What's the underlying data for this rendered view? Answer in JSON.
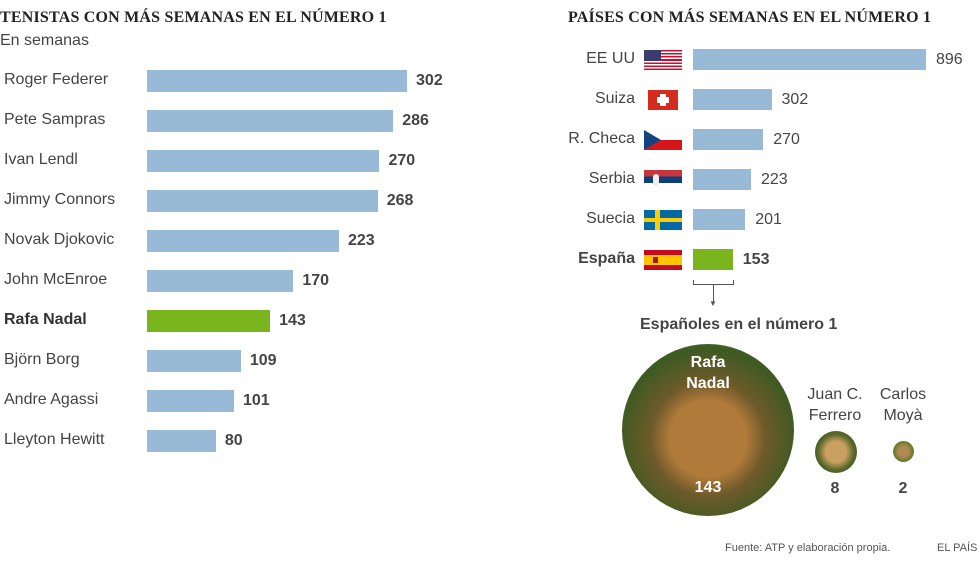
{
  "chart_data": [
    {
      "type": "bar",
      "title": "TENISTAS CON MÁS SEMANAS EN EL NÚMERO 1",
      "subtitle": "En semanas",
      "orientation": "horizontal",
      "categories": [
        "Roger Federer",
        "Pete Sampras",
        "Ivan Lendl",
        "Jimmy Connors",
        "Novak Djokovic",
        "John McEnroe",
        "Rafa Nadal",
        "Björn Borg",
        "Andre Agassi",
        "Lleyton Hewitt"
      ],
      "values": [
        302,
        286,
        270,
        268,
        223,
        170,
        143,
        109,
        101,
        80
      ],
      "highlight": "Rafa Nadal"
    },
    {
      "type": "bar",
      "title": "PAÍSES CON MÁS SEMANAS EN EL NÚMERO 1",
      "orientation": "horizontal",
      "categories": [
        "EE UU",
        "Suiza",
        "R. Checa",
        "Serbia",
        "Suecia",
        "España"
      ],
      "values": [
        896,
        302,
        270,
        223,
        201,
        153
      ],
      "highlight": "España"
    }
  ],
  "spanish": {
    "title": "Españoles en el número 1",
    "players": [
      {
        "first": "Rafa",
        "last": "Nadal",
        "weeks": "143"
      },
      {
        "first": "Juan C.",
        "last": "Ferrero",
        "weeks": "8"
      },
      {
        "first": "Carlos",
        "last": "Moyà",
        "weeks": "2"
      }
    ]
  },
  "colors": {
    "bar": "#98bad6",
    "highlight": "#7ab51d"
  },
  "footer": {
    "source": "Fuente: ATP y elaboración propia.",
    "brand": "EL PAÍS"
  }
}
